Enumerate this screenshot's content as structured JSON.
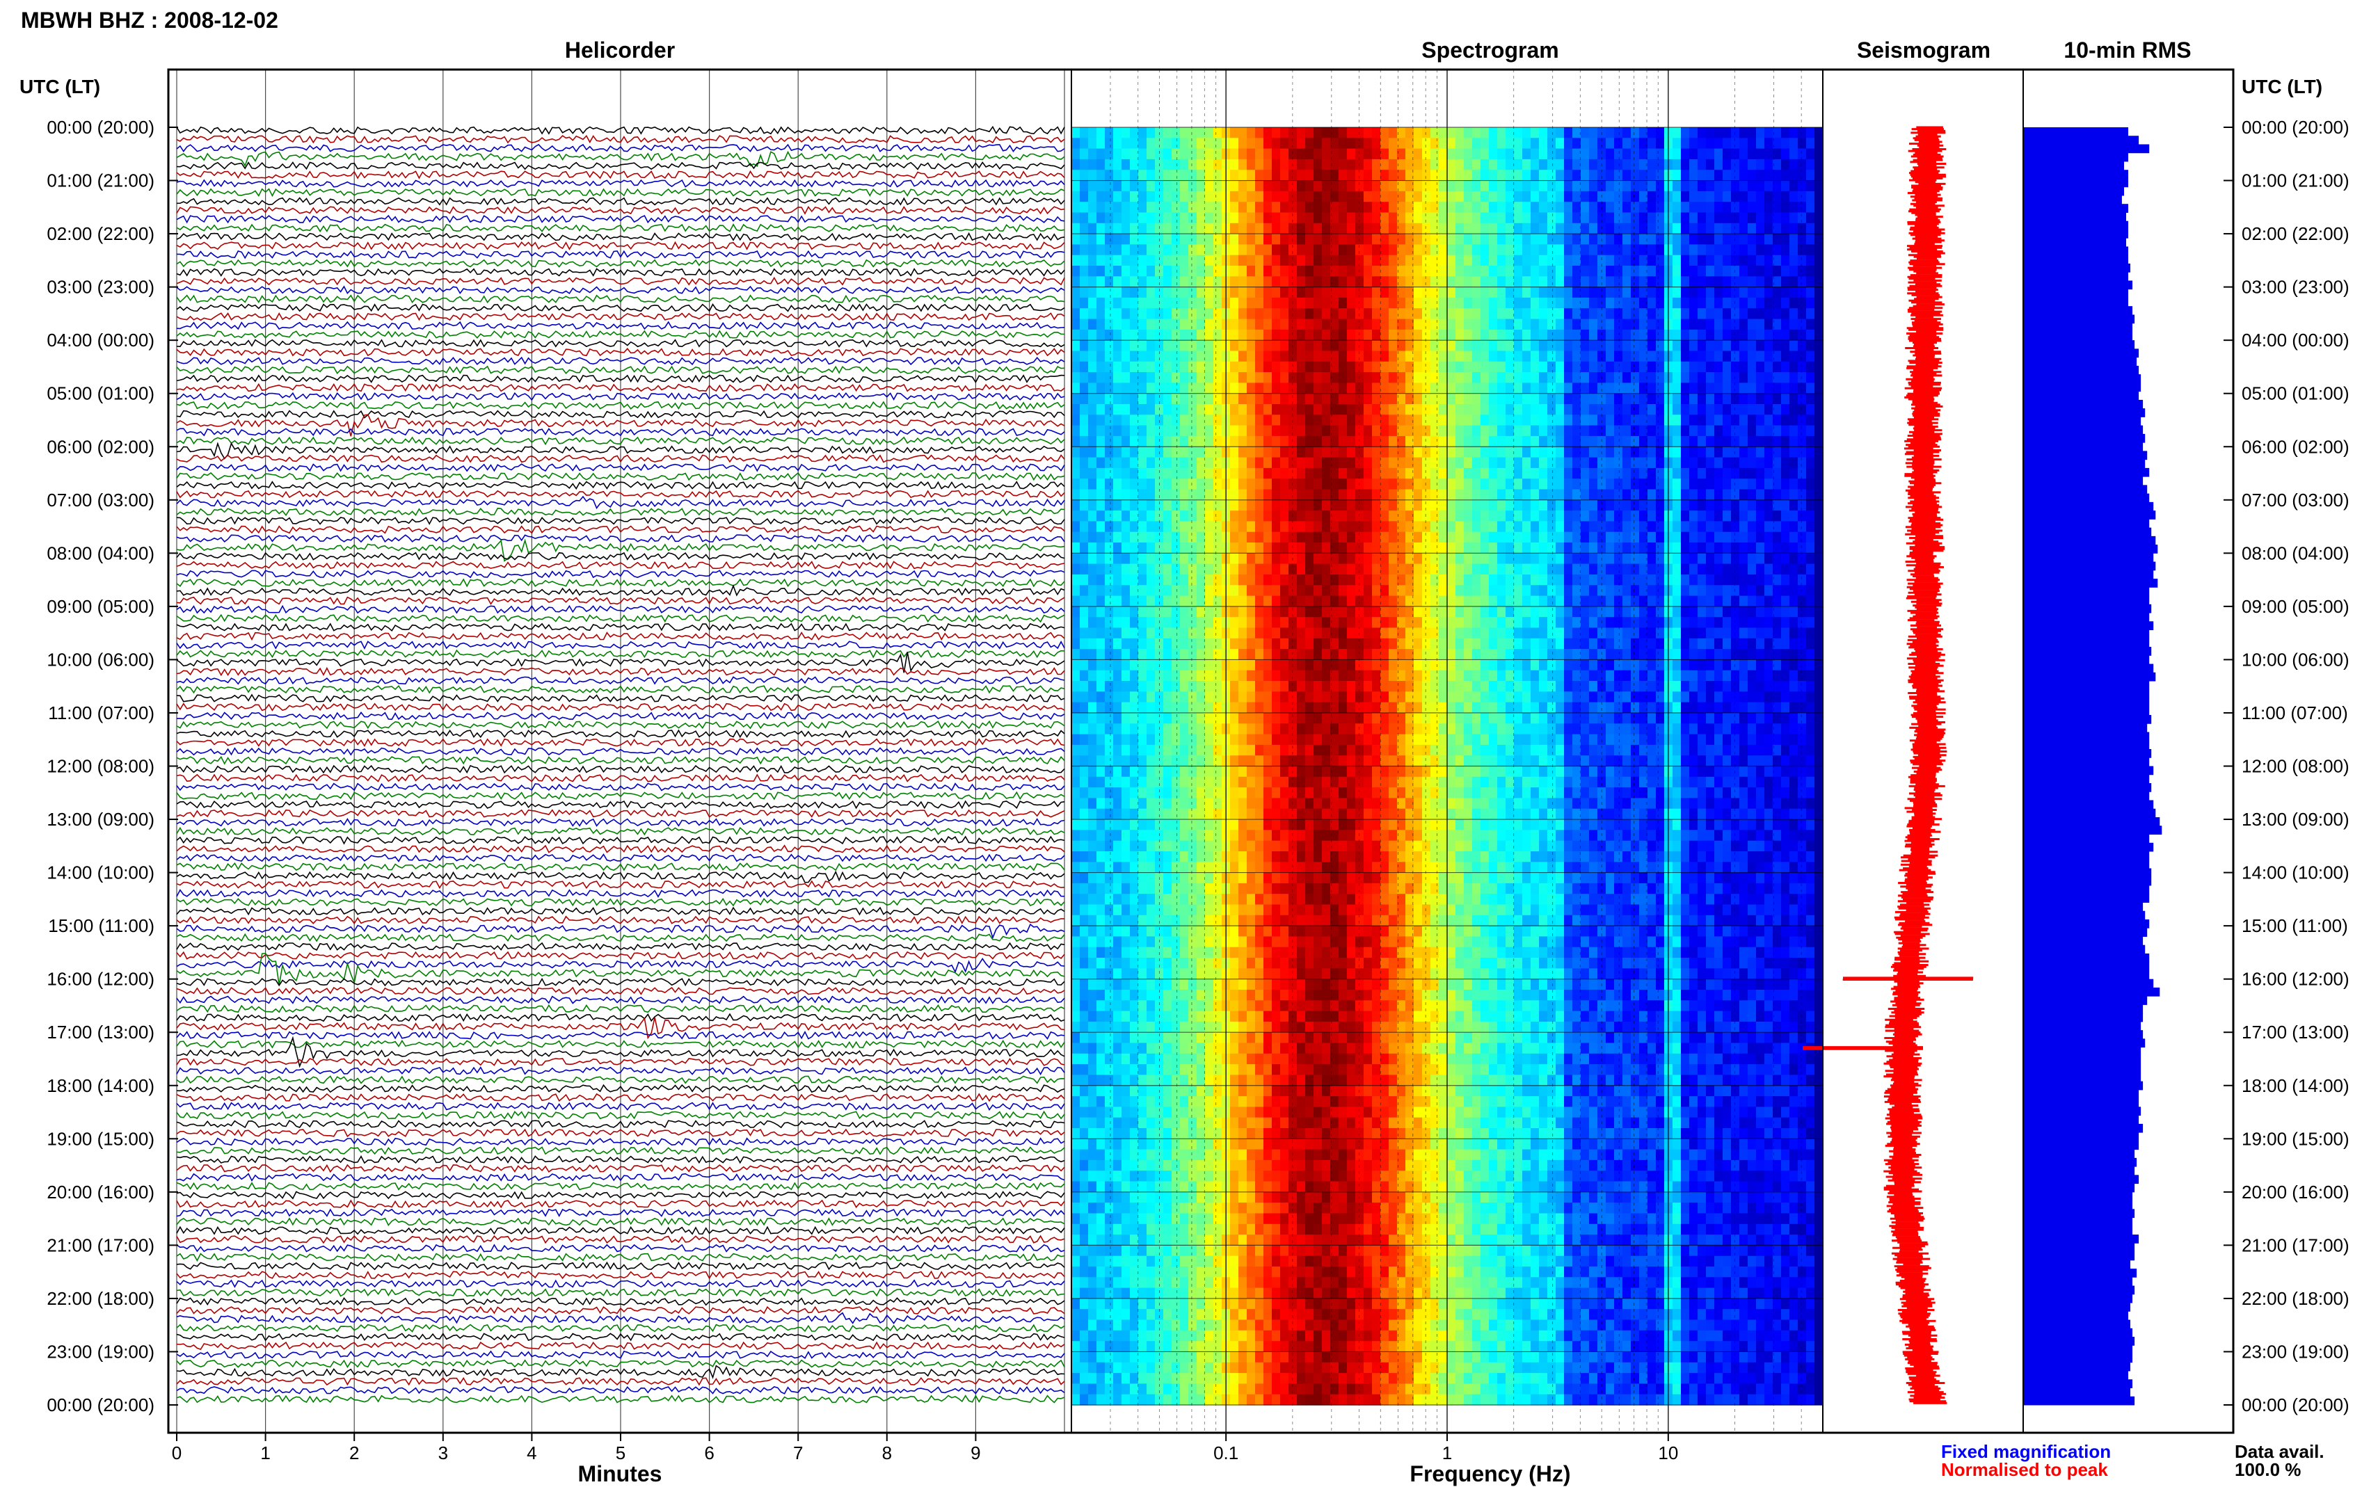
{
  "header": {
    "station_title": "MBWH BHZ : 2008-12-02",
    "panel_titles": {
      "helicorder": "Helicorder",
      "spectrogram": "Spectrogram",
      "seismogram": "Seismogram",
      "rms": "10-min RMS"
    },
    "time_axis_label_left": "UTC (LT)",
    "time_axis_label_right": "UTC (LT)"
  },
  "time_labels": [
    "00:00 (20:00)",
    "01:00 (21:00)",
    "02:00 (22:00)",
    "03:00 (23:00)",
    "04:00 (00:00)",
    "05:00 (01:00)",
    "06:00 (02:00)",
    "07:00 (03:00)",
    "08:00 (04:00)",
    "09:00 (05:00)",
    "10:00 (06:00)",
    "11:00 (07:00)",
    "12:00 (08:00)",
    "13:00 (09:00)",
    "14:00 (10:00)",
    "15:00 (11:00)",
    "16:00 (12:00)",
    "17:00 (13:00)",
    "18:00 (14:00)",
    "19:00 (15:00)",
    "20:00 (16:00)",
    "21:00 (17:00)",
    "22:00 (18:00)",
    "23:00 (19:00)",
    "00:00 (20:00)"
  ],
  "footer": {
    "minutes_label": "Minutes",
    "frequency_label": "Frequency (Hz)",
    "legend_fixed": "Fixed magnification",
    "legend_normalised": "Normalised to peak",
    "data_avail_label": "Data avail.",
    "data_avail_value": "100.0 %"
  },
  "colors": {
    "trace_cycle": [
      "#000000",
      "#b00000",
      "#0000c0",
      "#008000"
    ],
    "seismogram": "#ff0000",
    "rms_bars": "#0000ee",
    "legend_fixed": "#0000ff",
    "legend_normalised": "#ff0000"
  },
  "chart_data": [
    {
      "type": "line",
      "name": "helicorder",
      "xlabel": "Minutes",
      "xticks": [
        "0",
        "1",
        "2",
        "3",
        "4",
        "5",
        "6",
        "7",
        "8",
        "9"
      ],
      "xlim": [
        0,
        10
      ],
      "hours": 24,
      "traces_per_hour": 6,
      "trace_minutes": 10,
      "events": [
        {
          "hour": 0.45,
          "minute": 0.8,
          "amp": 2
        },
        {
          "hour": 0.45,
          "minute": 6.5,
          "amp": 2
        },
        {
          "hour": 5.45,
          "minute": 2.0,
          "amp": 3
        },
        {
          "hour": 6.0,
          "minute": 0.4,
          "amp": 3
        },
        {
          "hour": 7.0,
          "minute": 4.5,
          "amp": 1.5
        },
        {
          "hour": 7.85,
          "minute": 3.7,
          "amp": 3
        },
        {
          "hour": 8.65,
          "minute": 6.3,
          "amp": 2
        },
        {
          "hour": 10.0,
          "minute": 8.2,
          "amp": 2.5
        },
        {
          "hour": 14.0,
          "minute": 7.0,
          "amp": 2.5
        },
        {
          "hour": 15.0,
          "minute": 9.2,
          "amp": 2
        },
        {
          "hour": 15.7,
          "minute": 8.8,
          "amp": 2
        },
        {
          "hour": 15.9,
          "minute": 1.0,
          "amp": 5
        },
        {
          "hour": 15.85,
          "minute": 1.9,
          "amp": 3
        },
        {
          "hour": 16.8,
          "minute": 5.3,
          "amp": 2.5
        },
        {
          "hour": 17.35,
          "minute": 1.3,
          "amp": 4
        },
        {
          "hour": 22.3,
          "minute": 7.5,
          "amp": 2
        },
        {
          "hour": 23.35,
          "minute": 5.9,
          "amp": 2
        }
      ]
    },
    {
      "type": "heatmap",
      "name": "spectrogram",
      "xlabel": "Frequency (Hz)",
      "xscale": "log",
      "xlim": [
        0.02,
        50
      ],
      "xticks": [
        "0.1",
        "1",
        "10"
      ],
      "microseism_peak_hz": 0.28,
      "noise_rolloff_hz": 3.3,
      "line_hz": 10.5
    },
    {
      "type": "line",
      "name": "seismogram",
      "xlim": [
        -1,
        1
      ],
      "center_path": [
        {
          "hour": 0,
          "x": 0.05
        },
        {
          "hour": 6,
          "x": 0.0
        },
        {
          "hour": 12,
          "x": 0.05
        },
        {
          "hour": 14,
          "x": -0.05
        },
        {
          "hour": 17,
          "x": -0.2
        },
        {
          "hour": 20,
          "x": -0.2
        },
        {
          "hour": 24,
          "x": 0.05
        }
      ],
      "spikes": [
        {
          "hour": 16.0,
          "left": 0.65,
          "right": 0.65
        },
        {
          "hour": 17.3,
          "left": 1.0,
          "right": 0.2
        },
        {
          "hour": 7.9,
          "left": 0.15,
          "right": 0.2
        }
      ]
    },
    {
      "type": "bar",
      "name": "rms_10min",
      "orientation": "horizontal",
      "xlim": [
        0,
        1
      ],
      "values": [
        0.5,
        0.55,
        0.6,
        0.5,
        0.48,
        0.5,
        0.5,
        0.48,
        0.47,
        0.5,
        0.49,
        0.5,
        0.5,
        0.49,
        0.5,
        0.5,
        0.51,
        0.5,
        0.52,
        0.5,
        0.5,
        0.52,
        0.53,
        0.52,
        0.52,
        0.53,
        0.55,
        0.54,
        0.55,
        0.56,
        0.56,
        0.55,
        0.57,
        0.58,
        0.56,
        0.57,
        0.58,
        0.57,
        0.59,
        0.58,
        0.6,
        0.57,
        0.59,
        0.6,
        0.62,
        0.63,
        0.6,
        0.61,
        0.63,
        0.64,
        0.62,
        0.63,
        0.62,
        0.64,
        0.6,
        0.6,
        0.61,
        0.6,
        0.62,
        0.6,
        0.6,
        0.61,
        0.6,
        0.62,
        0.63,
        0.6,
        0.6,
        0.6,
        0.6,
        0.61,
        0.59,
        0.6,
        0.6,
        0.61,
        0.6,
        0.62,
        0.6,
        0.61,
        0.6,
        0.62,
        0.63,
        0.65,
        0.66,
        0.6,
        0.62,
        0.6,
        0.6,
        0.61,
        0.61,
        0.6,
        0.6,
        0.57,
        0.58,
        0.6,
        0.59,
        0.57,
        0.58,
        0.6,
        0.6,
        0.6,
        0.62,
        0.65,
        0.59,
        0.57,
        0.57,
        0.56,
        0.57,
        0.58,
        0.56,
        0.56,
        0.56,
        0.56,
        0.57,
        0.55,
        0.55,
        0.56,
        0.55,
        0.57,
        0.55,
        0.55,
        0.53,
        0.54,
        0.53,
        0.55,
        0.53,
        0.52,
        0.52,
        0.53,
        0.52,
        0.52,
        0.55,
        0.53,
        0.53,
        0.51,
        0.54,
        0.52,
        0.53,
        0.52,
        0.51,
        0.5,
        0.51,
        0.52,
        0.53,
        0.52,
        0.52,
        0.51,
        0.5,
        0.52,
        0.51,
        0.53
      ]
    }
  ]
}
